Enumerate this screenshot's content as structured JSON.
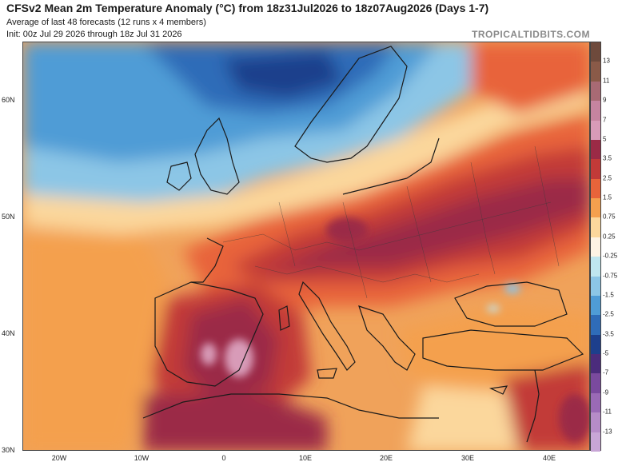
{
  "header": {
    "title": "CFSv2 Mean 2m Temperature Anomaly (°C) from 18z31Jul2026 to 18z07Aug2026 (Days 1-7)",
    "subtitle_1": "Average of last 48 forecasts (12 runs x 4 members)",
    "subtitle_2": "Init: 00z Jul 29 2026 through 18z Jul 31 2026",
    "brand": "TROPICALTIDBITS.COM"
  },
  "map": {
    "lat_labels": [
      "60N",
      "50N",
      "40N",
      "30N"
    ],
    "lon_labels": [
      "20W",
      "10W",
      "0",
      "10E",
      "20E",
      "30E",
      "40E"
    ]
  },
  "colorbar": {
    "labels": [
      "13",
      "11",
      "9",
      "7",
      "5",
      "3.5",
      "2.5",
      "1.5",
      "0.75",
      "0.25",
      "-0.25",
      "-0.75",
      "-1.5",
      "-2.5",
      "-3.5",
      "-5",
      "-7",
      "-9",
      "-11",
      "-13"
    ],
    "colors": [
      "#6e4a3c",
      "#8a5a48",
      "#a86a74",
      "#c684a0",
      "#d89bb8",
      "#9b2a46",
      "#c23a38",
      "#e8643a",
      "#f4a04e",
      "#fbd79c",
      "#fdf3e4",
      "#bfe6ef",
      "#8cc6e6",
      "#4f9cd6",
      "#2f6cb8",
      "#1d3f8c",
      "#4b2c7c",
      "#7a4a9e",
      "#9a6ab6",
      "#b68cc8",
      "#c8a6d6"
    ]
  }
}
